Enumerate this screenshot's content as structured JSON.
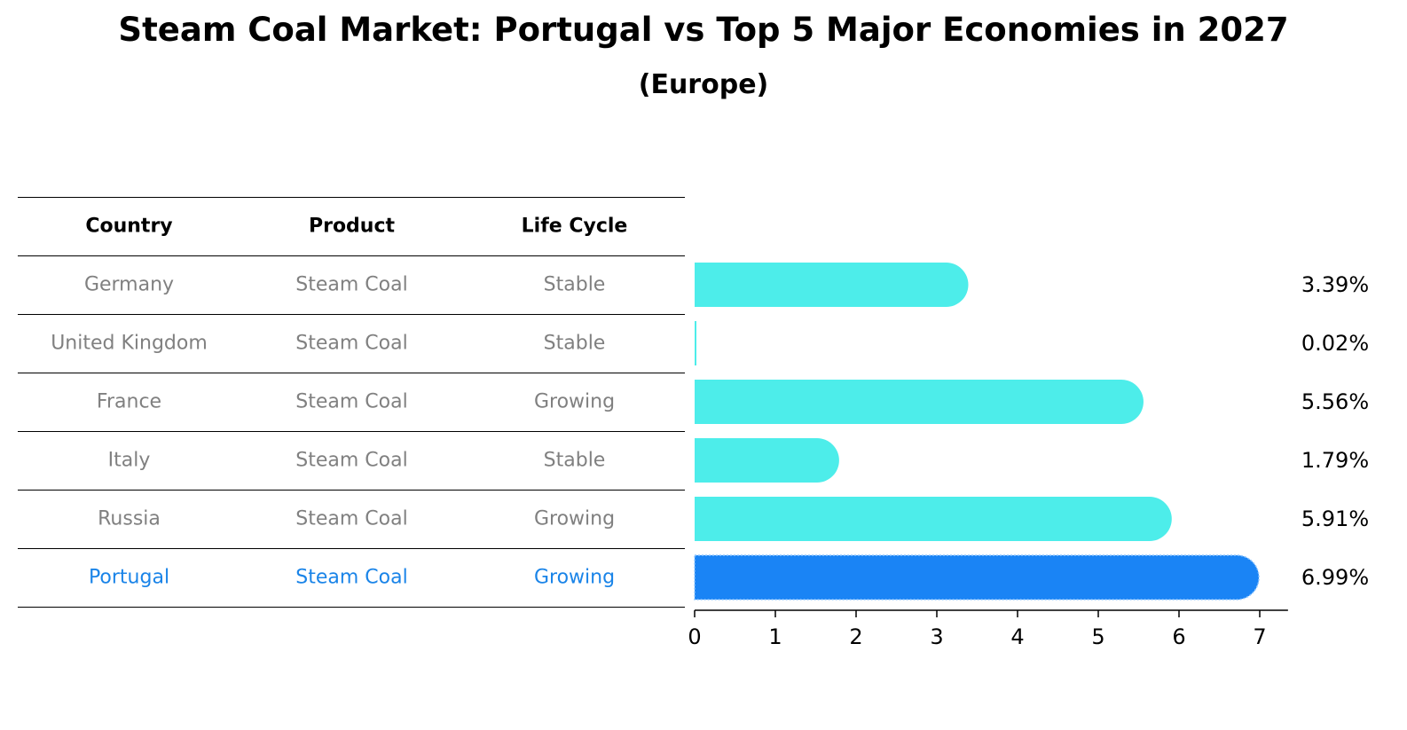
{
  "title": "Steam Coal Market: Portugal vs Top 5 Major Economies in 2027",
  "subtitle": "(Europe)",
  "table": {
    "headers": [
      "Country",
      "Product",
      "Life Cycle"
    ],
    "rows": [
      {
        "country": "Germany",
        "product": "Steam Coal",
        "life_cycle": "Stable"
      },
      {
        "country": "United Kingdom",
        "product": "Steam Coal",
        "life_cycle": "Stable"
      },
      {
        "country": "France",
        "product": "Steam Coal",
        "life_cycle": "Growing"
      },
      {
        "country": "Italy",
        "product": "Steam Coal",
        "life_cycle": "Stable"
      },
      {
        "country": "Russia",
        "product": "Steam Coal",
        "life_cycle": "Growing"
      },
      {
        "country": "Portugal",
        "product": "Steam Coal",
        "life_cycle": "Growing"
      }
    ],
    "highlight_row": 5
  },
  "colors": {
    "bar": "#4dedea",
    "highlight_bar": "#1a84f5",
    "highlight_text": "#1a84e8",
    "row_text": "#808080"
  },
  "chart_data": {
    "type": "bar",
    "orientation": "horizontal",
    "categories": [
      "Germany",
      "United Kingdom",
      "France",
      "Italy",
      "Russia",
      "Portugal"
    ],
    "values": [
      3.39,
      0.02,
      5.56,
      1.79,
      5.91,
      6.99
    ],
    "value_labels": [
      "3.39%",
      "0.02%",
      "5.56%",
      "1.79%",
      "5.91%",
      "6.99%"
    ],
    "xlim": [
      0,
      7.35
    ],
    "xticks": [
      0,
      1,
      2,
      3,
      4,
      5,
      6,
      7
    ],
    "xlabel": "",
    "ylabel": "",
    "grid": false,
    "highlight_index": 5
  }
}
